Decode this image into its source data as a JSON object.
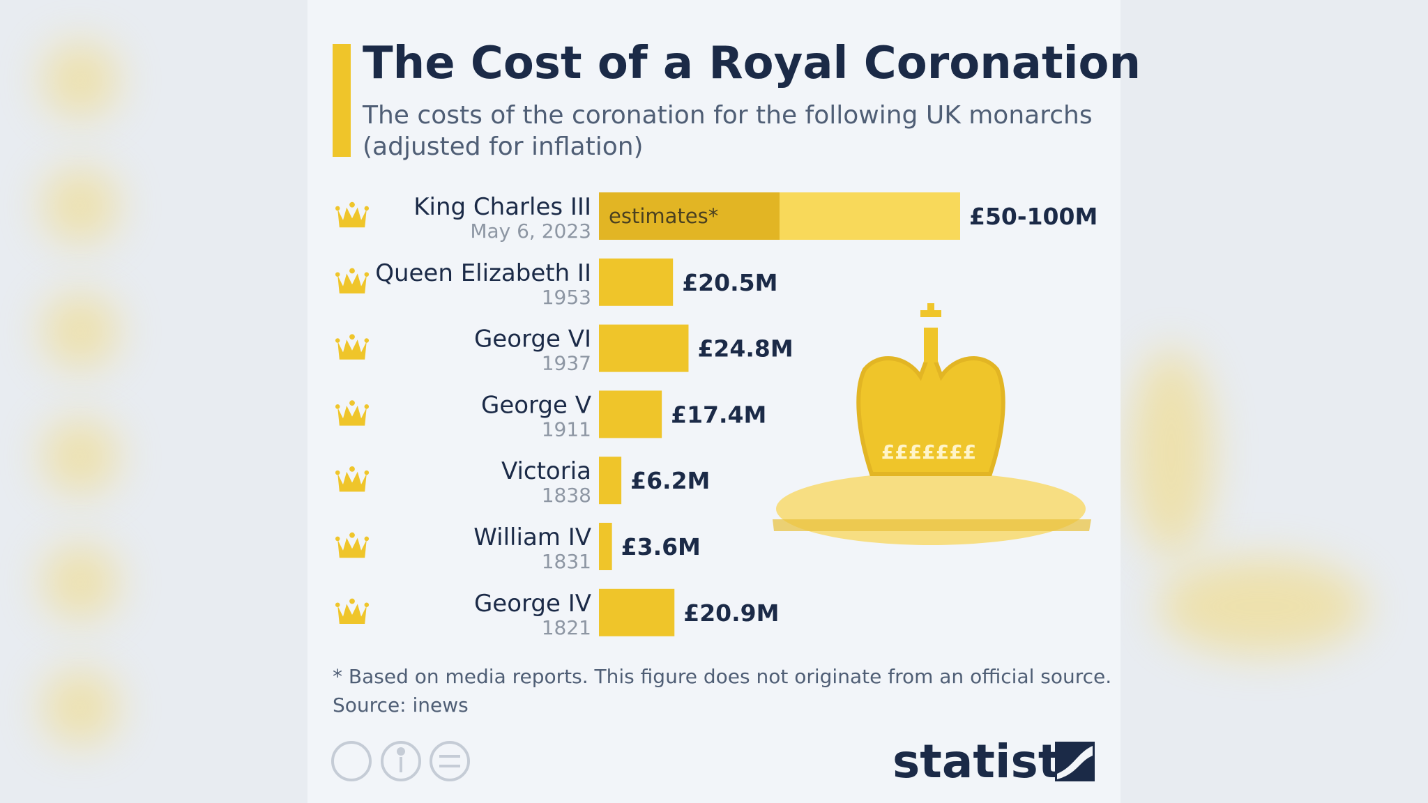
{
  "chart_data": {
    "type": "bar",
    "title": "The Cost of a Royal Coronation",
    "subtitle": [
      "The costs of the coronation for the following UK monarchs",
      "(adjusted for inflation)"
    ],
    "categories": [
      "King Charles III",
      "Queen Elizabeth II",
      "George VI",
      "George V",
      "Victoria",
      "William IV",
      "George IV"
    ],
    "dates": [
      "May 6, 2023",
      "1953",
      "1937",
      "1911",
      "1838",
      "1831",
      "1821"
    ],
    "values": [
      100,
      20.5,
      24.8,
      17.4,
      6.2,
      3.6,
      20.9
    ],
    "value_labels": [
      "£50-100M",
      "£20.5M",
      "£24.8M",
      "£17.4M",
      "£6.2M",
      "£3.6M",
      "£20.9M"
    ],
    "estimate_low": 50,
    "estimate_label": "estimates*",
    "color": "#efc52a",
    "estimate_color": "#e2b524",
    "range_color": "#f8d95a",
    "illustration_label": "£££££££",
    "notes": [
      "* Based on media reports. This figure does not originate from an official source.",
      "Source: inews"
    ],
    "brand": "statista"
  }
}
